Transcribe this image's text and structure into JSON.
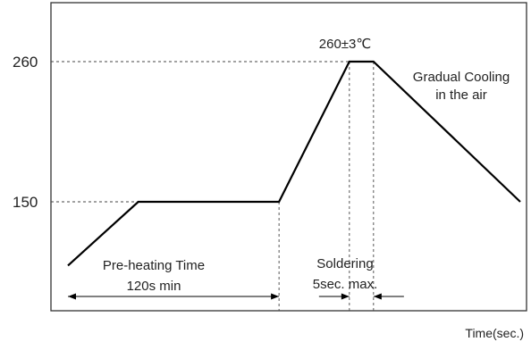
{
  "chart_data": {
    "type": "line",
    "title": "",
    "xlabel": "Time(sec.)",
    "ylabel": "",
    "yticks": [
      "260",
      "150"
    ],
    "ylim": [
      85,
      300
    ],
    "grid": false,
    "series": [
      {
        "points": [
          {
            "x": 0,
            "y": 100
          },
          {
            "x": 35,
            "y": 150
          },
          {
            "x": 105,
            "y": 150
          },
          {
            "x": 140,
            "y": 260
          },
          {
            "x": 152,
            "y": 260
          },
          {
            "x": 225,
            "y": 150
          }
        ]
      }
    ],
    "colors": {
      "line": "#000000",
      "axis": "#333333",
      "guide": "#444444",
      "text": "#222222"
    },
    "annotations": {
      "peak_label": "260±3℃",
      "cooling_line1": "Gradual Cooling",
      "cooling_line2": "in the air",
      "preheat_line1": "Pre-heating Time",
      "preheat_line2": "120s min",
      "solder_line1": "Soldering",
      "solder_line2": "5sec. max."
    }
  }
}
